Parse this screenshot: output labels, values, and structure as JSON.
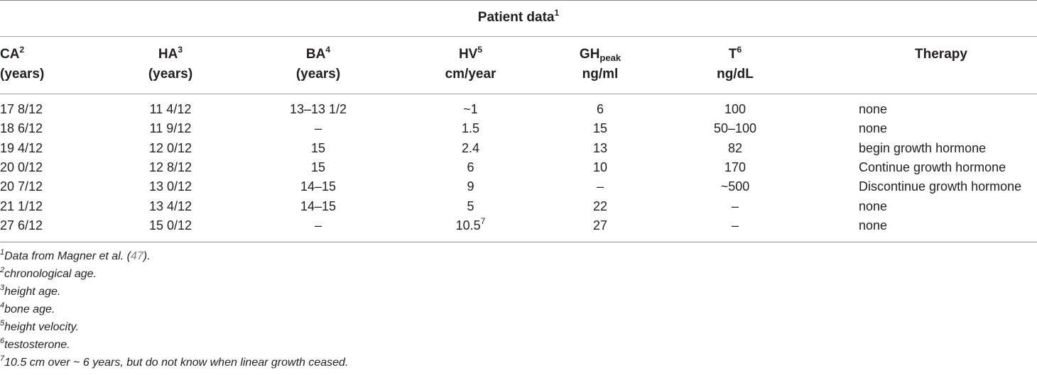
{
  "table": {
    "caption": "Patient data",
    "caption_sup": "1",
    "headers": [
      {
        "line1": "CA",
        "sup": "2",
        "line2": "(years)"
      },
      {
        "line1": "HA",
        "sup": "3",
        "line2": "(years)"
      },
      {
        "line1": "BA",
        "sup": "4",
        "line2": "(years)"
      },
      {
        "line1": "HV",
        "sup": "5",
        "line2": "cm/year"
      },
      {
        "line1": "GH",
        "sub": "peak",
        "line2": "ng/ml"
      },
      {
        "line1": "T",
        "sup": "6",
        "line2": "ng/dL"
      },
      {
        "line1": "Therapy",
        "line2": ""
      }
    ],
    "rows": [
      {
        "ca": "17 8/12",
        "ha": "11 4/12",
        "ba": "13–13 1/2",
        "hv": "~1",
        "gh": "6",
        "t": "100",
        "therapy": "none"
      },
      {
        "ca": "18 6/12",
        "ha": "11 9/12",
        "ba": "–",
        "hv": "1.5",
        "gh": "15",
        "t": "50–100",
        "therapy": "none"
      },
      {
        "ca": "19 4/12",
        "ha": "12 0/12",
        "ba": "15",
        "hv": "2.4",
        "gh": "13",
        "t": "82",
        "therapy": "begin growth hormone"
      },
      {
        "ca": "20 0/12",
        "ha": "12 8/12",
        "ba": "15",
        "hv": "6",
        "gh": "10",
        "t": "170",
        "therapy": "Continue growth hormone"
      },
      {
        "ca": "20 7/12",
        "ha": "13 0/12",
        "ba": "14–15",
        "hv": "9",
        "gh": "–",
        "t": "~500",
        "therapy": "Discontinue growth hormone"
      },
      {
        "ca": "21 1/12",
        "ha": "13 4/12",
        "ba": "14–15",
        "hv": "5",
        "gh": "22",
        "t": "–",
        "therapy": "none"
      },
      {
        "ca": "27 6/12",
        "ha": "15 0/12",
        "ba": "–",
        "hv": "10.5",
        "hv_sup": "7",
        "gh": "27",
        "t": "–",
        "therapy": "none"
      }
    ]
  },
  "footnotes": [
    {
      "mark": "1",
      "text": "Data from Magner et al. (",
      "ref": "47",
      "tail": ")."
    },
    {
      "mark": "2",
      "text": "chronological age."
    },
    {
      "mark": "3",
      "text": "height age."
    },
    {
      "mark": "4",
      "text": "bone age."
    },
    {
      "mark": "5",
      "text": "height velocity."
    },
    {
      "mark": "6",
      "text": "testosterone."
    },
    {
      "mark": "7",
      "text": "10.5 cm over ~ 6 years, but do not know when linear growth ceased."
    }
  ],
  "colors": {
    "text": "#231f20",
    "rule": "#8c8c8c",
    "reference": "#808080"
  }
}
